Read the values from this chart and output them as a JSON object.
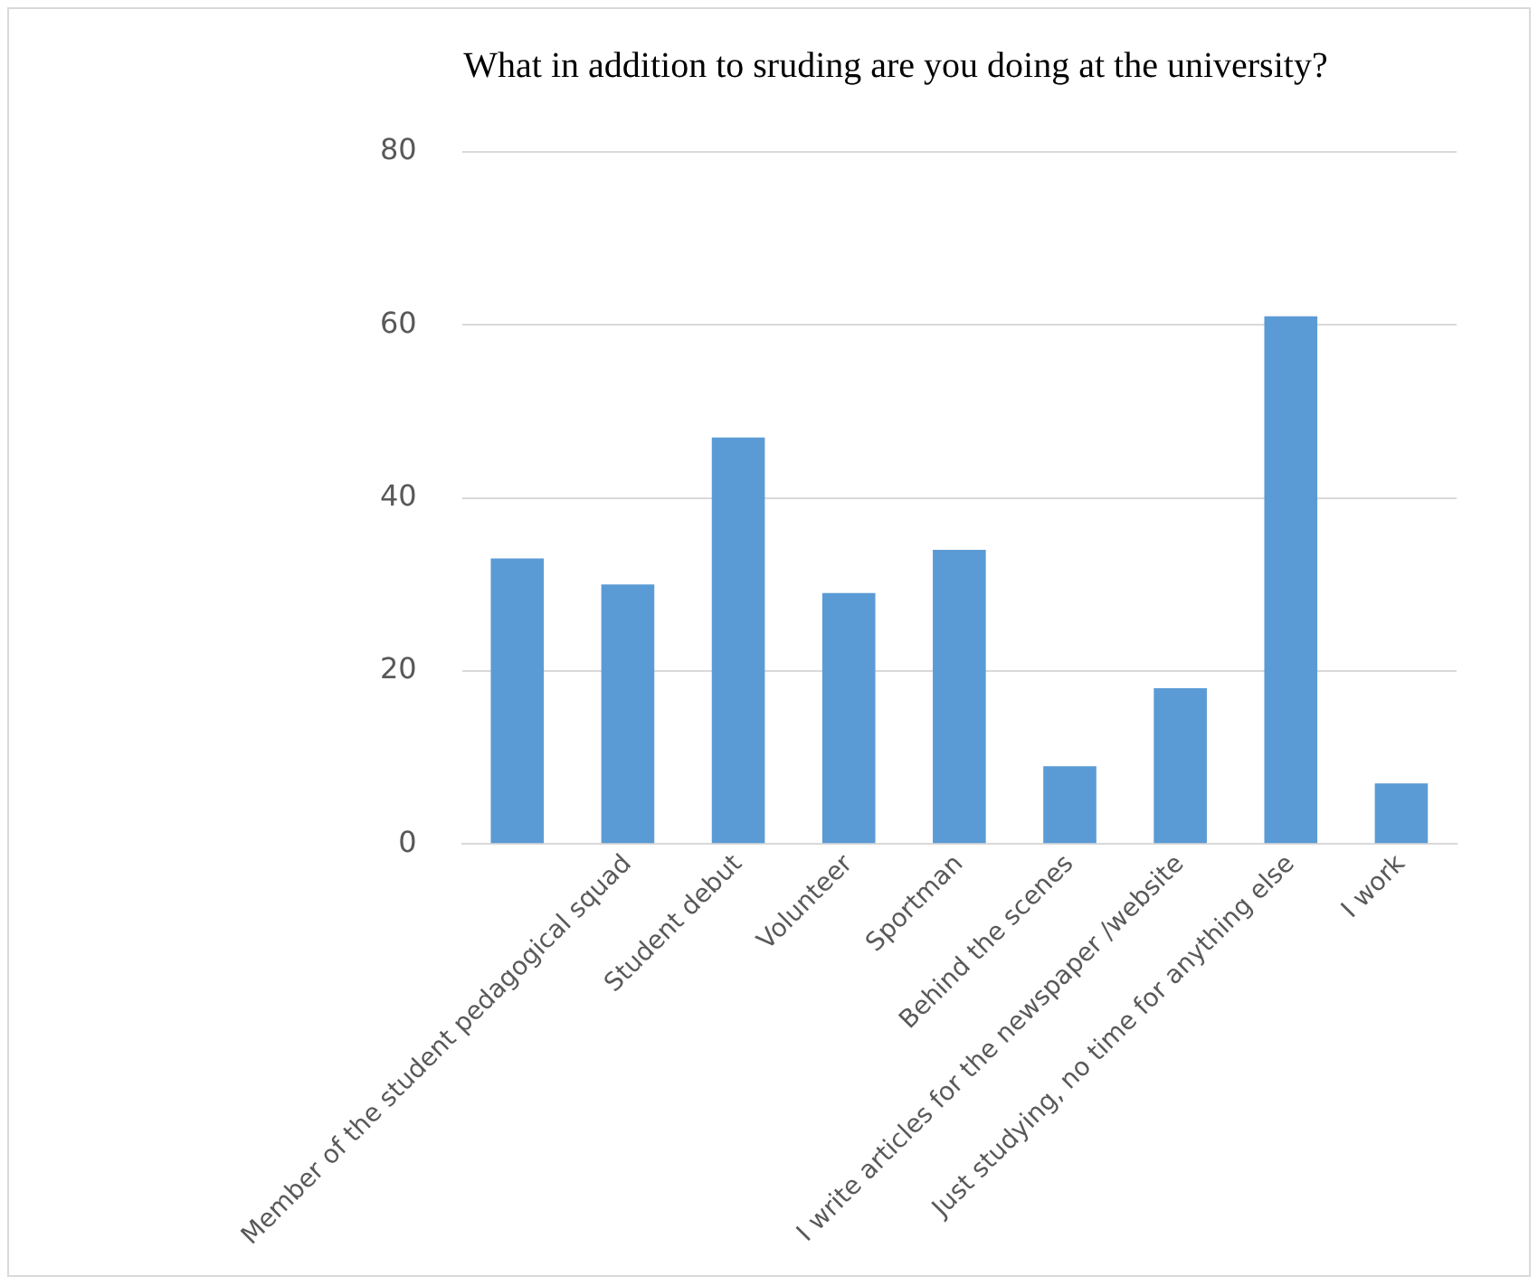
{
  "chart_data": {
    "type": "bar",
    "title": "What in addition to sruding are you doing at the university?",
    "categories": [
      null,
      "Member of the student pedagogical squad",
      "Student debut",
      "Volunteer",
      "Sportman",
      "Behind the scenes",
      "I write articles for the newspaper /website",
      "Just studying, no time for anything else",
      "I work"
    ],
    "values": [
      33,
      30,
      47,
      29,
      34,
      9,
      18,
      61,
      7
    ],
    "color": "#5b9bd5",
    "ylim": [
      0,
      80
    ],
    "yticks": [
      0,
      20,
      40,
      60,
      80
    ],
    "grid": "y"
  }
}
